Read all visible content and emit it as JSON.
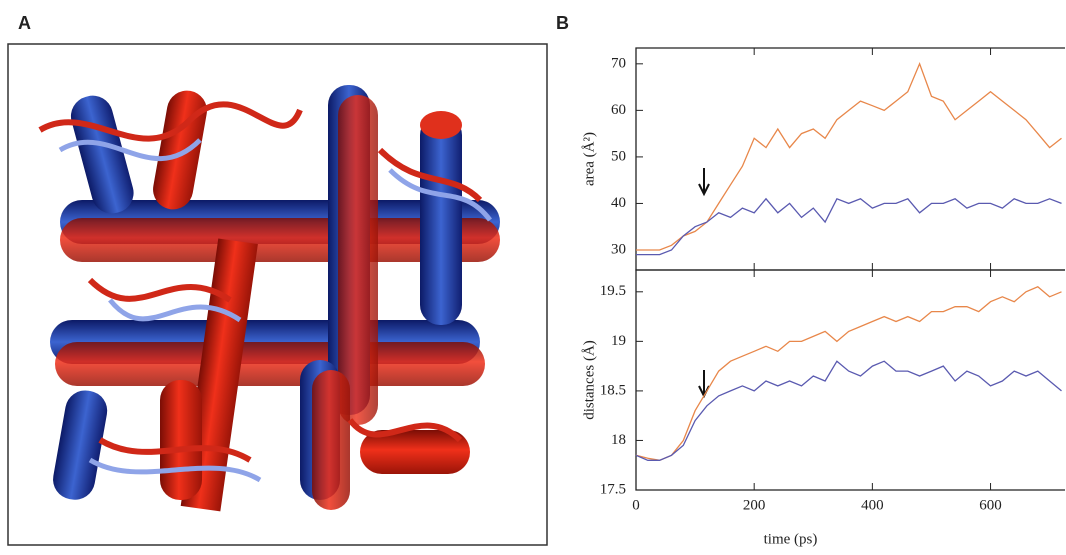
{
  "panel_labels": [
    "A",
    "B"
  ],
  "chart_data": [
    {
      "type": "line",
      "ylabel": "area (Å²)",
      "x": [
        0,
        20,
        40,
        60,
        80,
        100,
        120,
        140,
        160,
        180,
        200,
        220,
        240,
        260,
        280,
        300,
        320,
        340,
        360,
        380,
        400,
        420,
        440,
        460,
        480,
        500,
        520,
        540,
        560,
        580,
        600,
        620,
        640,
        660,
        680,
        700,
        720
      ],
      "series": [
        {
          "color": "#e8874a",
          "values": [
            30,
            30,
            30,
            31,
            33,
            34,
            36,
            40,
            44,
            48,
            54,
            52,
            56,
            52,
            55,
            56,
            54,
            58,
            60,
            62,
            61,
            60,
            62,
            64,
            70,
            63,
            62,
            58,
            60,
            62,
            64,
            62,
            60,
            58,
            55,
            52,
            54
          ]
        },
        {
          "color": "#5a5ab0",
          "values": [
            29,
            29,
            29,
            30,
            33,
            35,
            36,
            38,
            37,
            39,
            38,
            41,
            38,
            40,
            37,
            39,
            36,
            41,
            40,
            41,
            39,
            40,
            40,
            41,
            38,
            40,
            40,
            41,
            39,
            40,
            40,
            39,
            41,
            40,
            40,
            41,
            40
          ]
        }
      ],
      "xlim": [
        0,
        726
      ],
      "ylim": [
        25.7,
        73.4
      ],
      "yticks": [
        30,
        40,
        50,
        60,
        70
      ]
    },
    {
      "type": "line",
      "ylabel": "distances (Å)",
      "xlabel": "time (ps)",
      "x": [
        0,
        20,
        40,
        60,
        80,
        100,
        120,
        140,
        160,
        180,
        200,
        220,
        240,
        260,
        280,
        300,
        320,
        340,
        360,
        380,
        400,
        420,
        440,
        460,
        480,
        500,
        520,
        540,
        560,
        580,
        600,
        620,
        640,
        660,
        680,
        700,
        720
      ],
      "series": [
        {
          "color": "#e8874a",
          "values": [
            17.85,
            17.82,
            17.8,
            17.85,
            18.0,
            18.3,
            18.5,
            18.7,
            18.8,
            18.85,
            18.9,
            18.95,
            18.9,
            19.0,
            19.0,
            19.05,
            19.1,
            19.0,
            19.1,
            19.15,
            19.2,
            19.25,
            19.2,
            19.25,
            19.2,
            19.3,
            19.3,
            19.35,
            19.35,
            19.3,
            19.4,
            19.45,
            19.4,
            19.5,
            19.55,
            19.45,
            19.5
          ]
        },
        {
          "color": "#5a5ab0",
          "values": [
            17.85,
            17.8,
            17.8,
            17.85,
            17.95,
            18.2,
            18.35,
            18.45,
            18.5,
            18.55,
            18.5,
            18.6,
            18.55,
            18.6,
            18.55,
            18.65,
            18.6,
            18.8,
            18.7,
            18.65,
            18.75,
            18.8,
            18.7,
            18.7,
            18.65,
            18.7,
            18.75,
            18.6,
            18.7,
            18.65,
            18.55,
            18.6,
            18.7,
            18.65,
            18.7,
            18.6,
            18.5
          ]
        }
      ],
      "xlim": [
        0,
        726
      ],
      "ylim": [
        17.5,
        19.72
      ],
      "xticks": [
        0,
        200,
        400,
        600
      ],
      "yticks": [
        17.5,
        18,
        18.5,
        19,
        19.5
      ]
    }
  ]
}
